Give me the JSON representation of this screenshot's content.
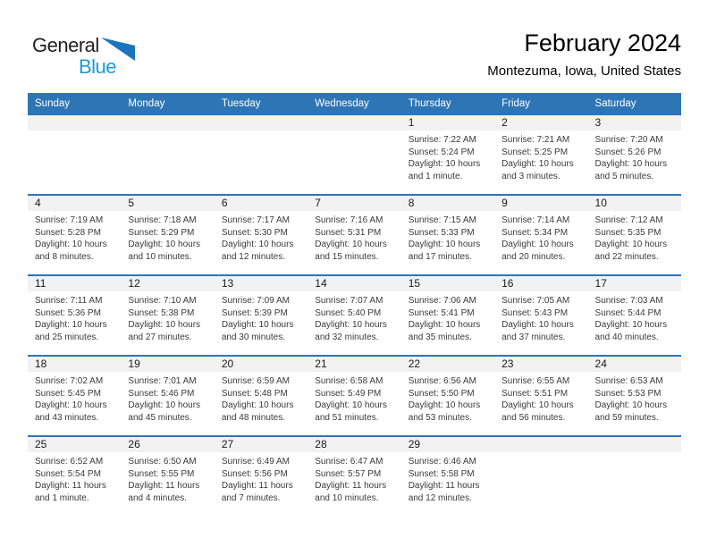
{
  "brand": {
    "general": "General",
    "blue": "Blue"
  },
  "title": {
    "month_year": "February 2024",
    "location": "Montezuma, Iowa, United States"
  },
  "weekdays": [
    "Sunday",
    "Monday",
    "Tuesday",
    "Wednesday",
    "Thursday",
    "Friday",
    "Saturday"
  ],
  "weeks": [
    [
      null,
      null,
      null,
      null,
      {
        "day": "1",
        "sunrise": "Sunrise: 7:22 AM",
        "sunset": "Sunset: 5:24 PM",
        "daylight1": "Daylight: 10 hours",
        "daylight2": "and 1 minute."
      },
      {
        "day": "2",
        "sunrise": "Sunrise: 7:21 AM",
        "sunset": "Sunset: 5:25 PM",
        "daylight1": "Daylight: 10 hours",
        "daylight2": "and 3 minutes."
      },
      {
        "day": "3",
        "sunrise": "Sunrise: 7:20 AM",
        "sunset": "Sunset: 5:26 PM",
        "daylight1": "Daylight: 10 hours",
        "daylight2": "and 5 minutes."
      }
    ],
    [
      {
        "day": "4",
        "sunrise": "Sunrise: 7:19 AM",
        "sunset": "Sunset: 5:28 PM",
        "daylight1": "Daylight: 10 hours",
        "daylight2": "and 8 minutes."
      },
      {
        "day": "5",
        "sunrise": "Sunrise: 7:18 AM",
        "sunset": "Sunset: 5:29 PM",
        "daylight1": "Daylight: 10 hours",
        "daylight2": "and 10 minutes."
      },
      {
        "day": "6",
        "sunrise": "Sunrise: 7:17 AM",
        "sunset": "Sunset: 5:30 PM",
        "daylight1": "Daylight: 10 hours",
        "daylight2": "and 12 minutes."
      },
      {
        "day": "7",
        "sunrise": "Sunrise: 7:16 AM",
        "sunset": "Sunset: 5:31 PM",
        "daylight1": "Daylight: 10 hours",
        "daylight2": "and 15 minutes."
      },
      {
        "day": "8",
        "sunrise": "Sunrise: 7:15 AM",
        "sunset": "Sunset: 5:33 PM",
        "daylight1": "Daylight: 10 hours",
        "daylight2": "and 17 minutes."
      },
      {
        "day": "9",
        "sunrise": "Sunrise: 7:14 AM",
        "sunset": "Sunset: 5:34 PM",
        "daylight1": "Daylight: 10 hours",
        "daylight2": "and 20 minutes."
      },
      {
        "day": "10",
        "sunrise": "Sunrise: 7:12 AM",
        "sunset": "Sunset: 5:35 PM",
        "daylight1": "Daylight: 10 hours",
        "daylight2": "and 22 minutes."
      }
    ],
    [
      {
        "day": "11",
        "sunrise": "Sunrise: 7:11 AM",
        "sunset": "Sunset: 5:36 PM",
        "daylight1": "Daylight: 10 hours",
        "daylight2": "and 25 minutes."
      },
      {
        "day": "12",
        "sunrise": "Sunrise: 7:10 AM",
        "sunset": "Sunset: 5:38 PM",
        "daylight1": "Daylight: 10 hours",
        "daylight2": "and 27 minutes."
      },
      {
        "day": "13",
        "sunrise": "Sunrise: 7:09 AM",
        "sunset": "Sunset: 5:39 PM",
        "daylight1": "Daylight: 10 hours",
        "daylight2": "and 30 minutes."
      },
      {
        "day": "14",
        "sunrise": "Sunrise: 7:07 AM",
        "sunset": "Sunset: 5:40 PM",
        "daylight1": "Daylight: 10 hours",
        "daylight2": "and 32 minutes."
      },
      {
        "day": "15",
        "sunrise": "Sunrise: 7:06 AM",
        "sunset": "Sunset: 5:41 PM",
        "daylight1": "Daylight: 10 hours",
        "daylight2": "and 35 minutes."
      },
      {
        "day": "16",
        "sunrise": "Sunrise: 7:05 AM",
        "sunset": "Sunset: 5:43 PM",
        "daylight1": "Daylight: 10 hours",
        "daylight2": "and 37 minutes."
      },
      {
        "day": "17",
        "sunrise": "Sunrise: 7:03 AM",
        "sunset": "Sunset: 5:44 PM",
        "daylight1": "Daylight: 10 hours",
        "daylight2": "and 40 minutes."
      }
    ],
    [
      {
        "day": "18",
        "sunrise": "Sunrise: 7:02 AM",
        "sunset": "Sunset: 5:45 PM",
        "daylight1": "Daylight: 10 hours",
        "daylight2": "and 43 minutes."
      },
      {
        "day": "19",
        "sunrise": "Sunrise: 7:01 AM",
        "sunset": "Sunset: 5:46 PM",
        "daylight1": "Daylight: 10 hours",
        "daylight2": "and 45 minutes."
      },
      {
        "day": "20",
        "sunrise": "Sunrise: 6:59 AM",
        "sunset": "Sunset: 5:48 PM",
        "daylight1": "Daylight: 10 hours",
        "daylight2": "and 48 minutes."
      },
      {
        "day": "21",
        "sunrise": "Sunrise: 6:58 AM",
        "sunset": "Sunset: 5:49 PM",
        "daylight1": "Daylight: 10 hours",
        "daylight2": "and 51 minutes."
      },
      {
        "day": "22",
        "sunrise": "Sunrise: 6:56 AM",
        "sunset": "Sunset: 5:50 PM",
        "daylight1": "Daylight: 10 hours",
        "daylight2": "and 53 minutes."
      },
      {
        "day": "23",
        "sunrise": "Sunrise: 6:55 AM",
        "sunset": "Sunset: 5:51 PM",
        "daylight1": "Daylight: 10 hours",
        "daylight2": "and 56 minutes."
      },
      {
        "day": "24",
        "sunrise": "Sunrise: 6:53 AM",
        "sunset": "Sunset: 5:53 PM",
        "daylight1": "Daylight: 10 hours",
        "daylight2": "and 59 minutes."
      }
    ],
    [
      {
        "day": "25",
        "sunrise": "Sunrise: 6:52 AM",
        "sunset": "Sunset: 5:54 PM",
        "daylight1": "Daylight: 11 hours",
        "daylight2": "and 1 minute."
      },
      {
        "day": "26",
        "sunrise": "Sunrise: 6:50 AM",
        "sunset": "Sunset: 5:55 PM",
        "daylight1": "Daylight: 11 hours",
        "daylight2": "and 4 minutes."
      },
      {
        "day": "27",
        "sunrise": "Sunrise: 6:49 AM",
        "sunset": "Sunset: 5:56 PM",
        "daylight1": "Daylight: 11 hours",
        "daylight2": "and 7 minutes."
      },
      {
        "day": "28",
        "sunrise": "Sunrise: 6:47 AM",
        "sunset": "Sunset: 5:57 PM",
        "daylight1": "Daylight: 11 hours",
        "daylight2": "and 10 minutes."
      },
      {
        "day": "29",
        "sunrise": "Sunrise: 6:46 AM",
        "sunset": "Sunset: 5:58 PM",
        "daylight1": "Daylight: 11 hours",
        "daylight2": "and 12 minutes."
      },
      null,
      null
    ]
  ],
  "colors": {
    "header_blue": "#2e75b6",
    "week_separator_blue": "#2e75b6",
    "day_band_gray": "#f2f2f2",
    "logo_blue_text": "#1b9cd8",
    "logo_triangle_blue": "#1c75bc",
    "body_text": "#3a3a3a"
  }
}
